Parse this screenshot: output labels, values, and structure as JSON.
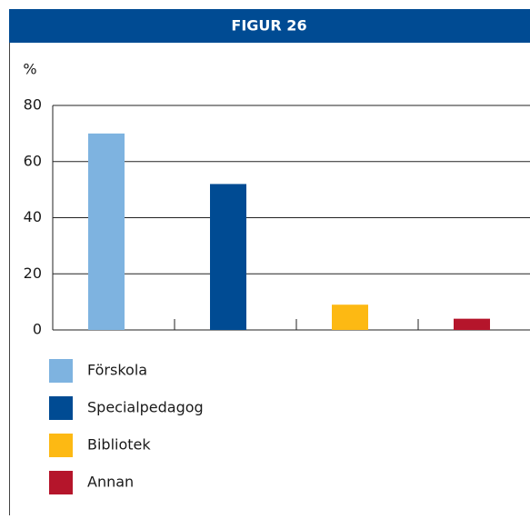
{
  "chart_data": {
    "type": "bar",
    "title": "FIGUR 26",
    "ylabel": "%",
    "categories": [
      "Förskola",
      "Specialpedagog",
      "Bibliotek",
      "Annan"
    ],
    "values": [
      70,
      52,
      9,
      4
    ],
    "colors": [
      "#7eb3e0",
      "#004b93",
      "#fdb913",
      "#b5152b"
    ],
    "ylim": [
      0,
      80
    ],
    "yticks": [
      0,
      20,
      40,
      60,
      80
    ],
    "grid": true,
    "legend": "bottom"
  }
}
